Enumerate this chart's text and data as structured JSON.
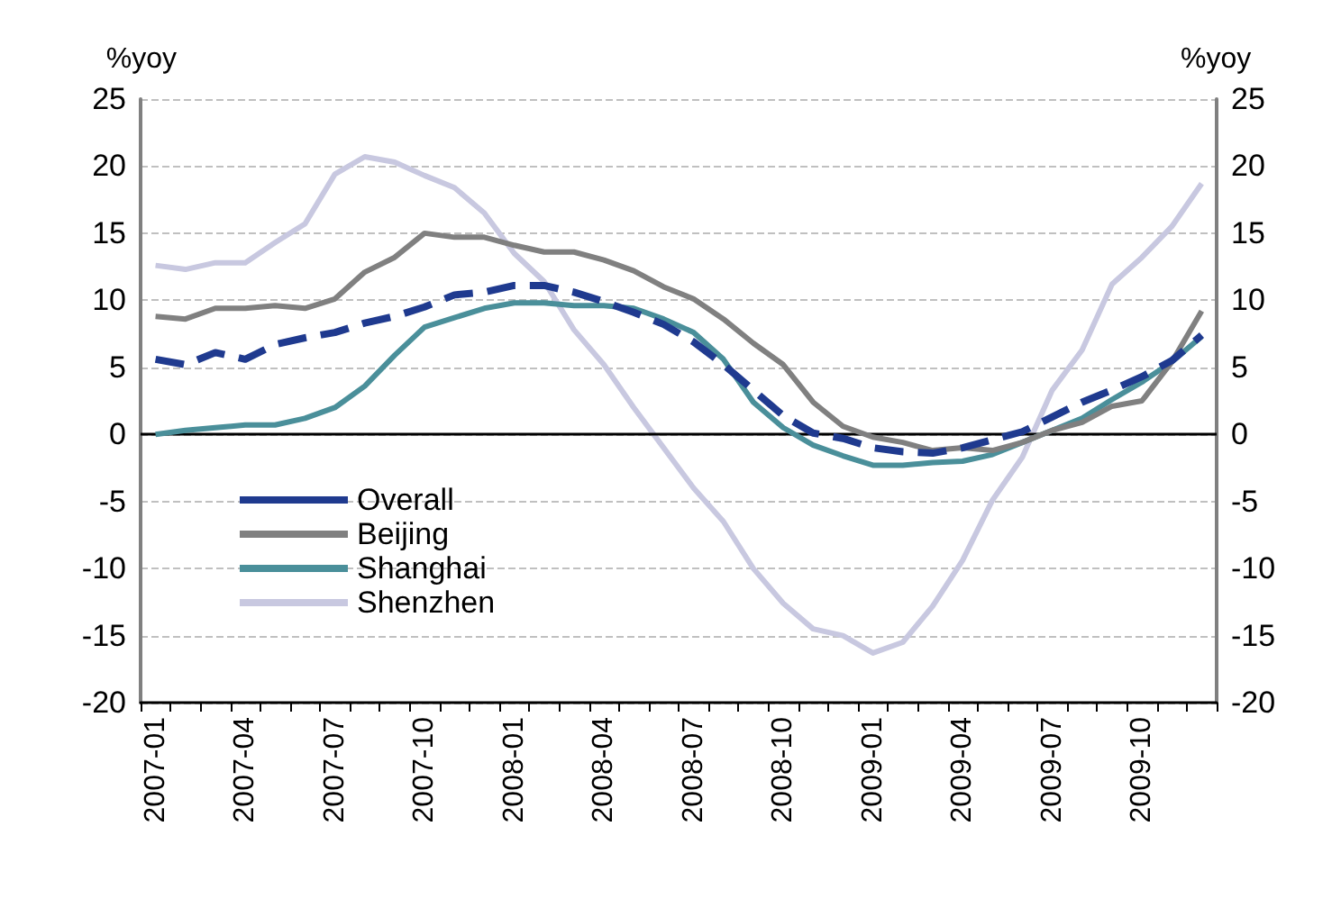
{
  "chart_data": {
    "type": "line",
    "categories": [
      "2007-01",
      null,
      null,
      "2007-04",
      null,
      null,
      "2007-07",
      null,
      null,
      "2007-10",
      null,
      null,
      "2008-01",
      null,
      null,
      "2008-04",
      null,
      null,
      "2008-07",
      null,
      null,
      "2008-10",
      null,
      null,
      "2009-01",
      null,
      null,
      "2009-04",
      null,
      null,
      "2009-07",
      null,
      null,
      "2009-10",
      null,
      null
    ],
    "series": [
      {
        "name": "Overall",
        "color": "#1f3a8f",
        "line_style": "dashed",
        "values": [
          5.6,
          5.2,
          6.1,
          5.6,
          6.7,
          7.2,
          7.6,
          8.3,
          8.8,
          9.5,
          10.4,
          10.6,
          11.1,
          11.1,
          10.6,
          9.9,
          9.1,
          8.2,
          6.9,
          5.2,
          3.3,
          1.4,
          0.1,
          -0.3,
          -1.0,
          -1.3,
          -1.4,
          -1.0,
          -0.4,
          0.2,
          1.3,
          2.4,
          3.3,
          4.3,
          5.5,
          7.4
        ]
      },
      {
        "name": "Beijing",
        "color": "#808080",
        "values": [
          8.8,
          8.6,
          9.4,
          9.4,
          9.6,
          9.4,
          10.1,
          12.1,
          13.2,
          15.0,
          14.7,
          14.7,
          14.1,
          13.6,
          13.6,
          13.0,
          12.2,
          11.0,
          10.1,
          8.6,
          6.8,
          5.2,
          2.4,
          0.6,
          -0.2,
          -0.6,
          -1.2,
          -1.0,
          -1.2,
          -0.6,
          0.3,
          0.9,
          2.1,
          2.5,
          5.4,
          9.2
        ]
      },
      {
        "name": "Shanghai",
        "color": "#4a8f9a",
        "values": [
          0,
          0.3,
          0.5,
          0.7,
          0.7,
          1.2,
          2.0,
          3.6,
          5.9,
          8.0,
          8.7,
          9.4,
          9.8,
          9.8,
          9.6,
          9.6,
          9.4,
          8.6,
          7.6,
          5.6,
          2.4,
          0.5,
          -0.8,
          -1.6,
          -2.3,
          -2.3,
          -2.1,
          -2.0,
          -1.5,
          -0.6,
          0.3,
          1.2,
          2.6,
          3.9,
          5.4,
          7.3
        ]
      },
      {
        "name": "Shenzhen",
        "color": "#c8c8e0",
        "values": [
          12.6,
          12.3,
          12.8,
          12.8,
          14.3,
          15.7,
          19.4,
          20.7,
          20.3,
          19.3,
          18.4,
          16.5,
          13.5,
          11.4,
          7.8,
          5.2,
          2.0,
          -1.0,
          -4.0,
          -6.5,
          -10.0,
          -12.6,
          -14.5,
          -15.0,
          -16.3,
          -15.5,
          -12.8,
          -9.4,
          -4.9,
          -1.7,
          3.3,
          6.3,
          11.2,
          13.2,
          15.5,
          18.7
        ]
      }
    ],
    "ylabel": "%yoy",
    "y2label": "%yoy",
    "ylim": [
      -20,
      25
    ],
    "yticks": [
      -20,
      -15,
      -10,
      -5,
      0,
      5,
      10,
      15,
      20,
      25
    ],
    "y2lim": [
      -20,
      25
    ],
    "y2ticks": [
      -20,
      -15,
      -10,
      -5,
      0,
      5,
      10,
      15,
      20,
      25
    ],
    "ref_lines": [
      {
        "axis": "y",
        "value": 0,
        "color": "#000000",
        "line_style": "solid"
      }
    ],
    "grid": "y",
    "legend": "bottom left",
    "marker": "none",
    "line_style": "solid"
  }
}
